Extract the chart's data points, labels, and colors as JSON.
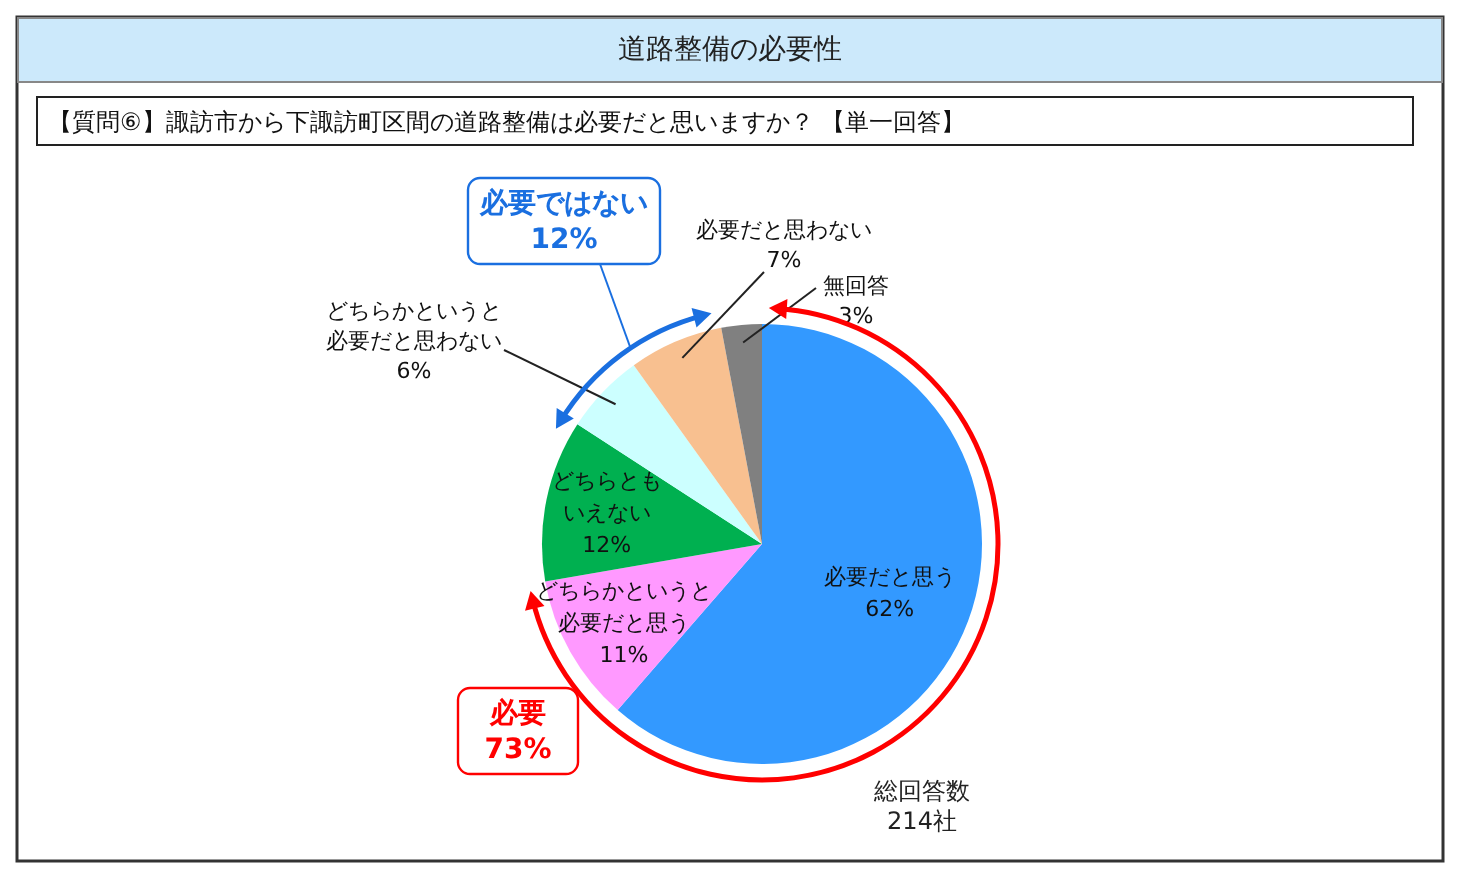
{
  "chart_data": {
    "type": "pie",
    "title": "道路整備の必要性",
    "subtitle": "【質問⑥】諏訪市から下諏訪町区間の道路整備は必要だと思いますか？ 【単一回答】",
    "categories": [
      "必要だと思う",
      "どちらかというと必要だと思う",
      "どちらともいえない",
      "どちらかというと必要だと思わない",
      "必要だと思わない",
      "無回答"
    ],
    "values": [
      62,
      11,
      12,
      6,
      7,
      3
    ],
    "value_labels": [
      "62%",
      "11%",
      "12%",
      "6%",
      "7%",
      "3%"
    ],
    "colors": [
      "#3399ff",
      "#ff99ff",
      "#00b050",
      "#ccffff",
      "#f8c090",
      "#808080"
    ],
    "annotations": [
      "必要ではない\n12%",
      "必要\n73%",
      "総回答数\n214社"
    ]
  }
}
